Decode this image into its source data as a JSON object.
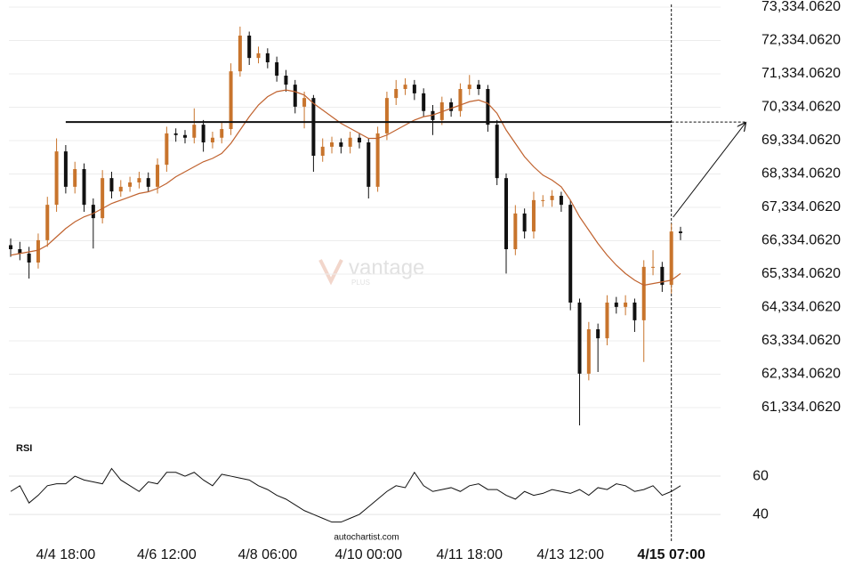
{
  "chart_data": [
    {
      "type": "candlestick",
      "categories": [
        null,
        null,
        null,
        null,
        null,
        null,
        "4/4 18:00",
        null,
        null,
        null,
        null,
        null,
        null,
        null,
        null,
        null,
        null,
        "4/6 12:00",
        null,
        null,
        null,
        null,
        null,
        null,
        null,
        null,
        null,
        null,
        "4/8 06:00",
        null,
        null,
        null,
        null,
        null,
        null,
        null,
        null,
        null,
        null,
        "4/10 00:00",
        null,
        null,
        null,
        null,
        null,
        null,
        null,
        null,
        null,
        null,
        "4/11 18:00",
        null,
        null,
        null,
        null,
        null,
        null,
        null,
        null,
        null,
        null,
        "4/13 12:00",
        null,
        null,
        null,
        null,
        null,
        null,
        null,
        null,
        null,
        null,
        "4/15 07:00",
        null
      ],
      "open": [
        66200,
        66080,
        65950,
        65680,
        66350,
        67410,
        69010,
        67950,
        68480,
        67410,
        67010,
        68210,
        67810,
        67950,
        68080,
        68210,
        67950,
        68610,
        69550,
        69500,
        69420,
        69810,
        69280,
        69420,
        69680,
        71410,
        72480,
        71810,
        71950,
        71680,
        71280,
        71010,
        70350,
        70610,
        68880,
        69150,
        69280,
        69150,
        69420,
        69280,
        67950,
        69550,
        70610,
        70880,
        71010,
        70750,
        70220,
        69950,
        70480,
        70220,
        70880,
        71010,
        70880,
        69810,
        68210,
        66080,
        67150,
        66610,
        67550,
        67550,
        67680,
        67410,
        64480,
        62350,
        63680,
        63410,
        64480,
        64350,
        64480,
        63950,
        65550,
        65550,
        65010,
        66610
      ],
      "high": [
        66400,
        66300,
        66150,
        66550,
        67650,
        69400,
        69200,
        68700,
        68650,
        67600,
        68450,
        68400,
        68150,
        68250,
        68400,
        68380,
        68800,
        69750,
        69700,
        69650,
        70300,
        69950,
        69600,
        69900,
        71650,
        72750,
        72600,
        72150,
        72100,
        71850,
        71450,
        71150,
        70800,
        70700,
        69400,
        69450,
        69400,
        69600,
        69550,
        69400,
        69750,
        70800,
        71150,
        71200,
        71150,
        70900,
        70400,
        70650,
        70600,
        71050,
        71300,
        71150,
        71000,
        69950,
        68350,
        67400,
        67300,
        67800,
        67700,
        67850,
        67800,
        67550,
        64600,
        63900,
        63850,
        64700,
        64650,
        64700,
        64600,
        65750,
        66050,
        65700,
        66850,
        66750
      ],
      "low": [
        65850,
        65750,
        65200,
        65500,
        66150,
        67200,
        67750,
        67750,
        67200,
        66100,
        66850,
        67600,
        67650,
        67800,
        67900,
        67800,
        67750,
        68400,
        69300,
        69250,
        69250,
        69000,
        69100,
        69250,
        69500,
        71250,
        71600,
        71650,
        71500,
        71100,
        70800,
        70150,
        69700,
        68400,
        68700,
        68950,
        68950,
        68950,
        69100,
        67600,
        67800,
        69350,
        70400,
        70700,
        70550,
        70050,
        69500,
        69800,
        70050,
        70050,
        70700,
        70700,
        69600,
        68000,
        65350,
        65900,
        66400,
        66400,
        67350,
        67350,
        67200,
        64250,
        60800,
        62150,
        62400,
        63200,
        64150,
        64100,
        63600,
        62700,
        65300,
        64800,
        64750,
        66350
      ],
      "close": [
        66080,
        65950,
        65680,
        66350,
        67410,
        69010,
        67950,
        68480,
        67410,
        67010,
        68210,
        67810,
        67950,
        68080,
        68210,
        67950,
        68610,
        69550,
        69500,
        69420,
        69810,
        69280,
        69420,
        69680,
        71410,
        72480,
        71810,
        71950,
        71680,
        71280,
        71010,
        70350,
        70610,
        68880,
        69150,
        69280,
        69150,
        69420,
        69280,
        67950,
        69550,
        70610,
        70880,
        71010,
        70750,
        70220,
        69950,
        70480,
        70220,
        70880,
        71010,
        70880,
        69810,
        68210,
        66080,
        67150,
        66610,
        67550,
        67550,
        67680,
        67410,
        64480,
        62350,
        63680,
        63410,
        64480,
        64350,
        64480,
        63950,
        65550,
        65550,
        65010,
        66610,
        66560
      ],
      "up_color": "#c8742c",
      "down_color": "#111111",
      "series": [
        {
          "color": "#c0622e",
          "values": [
            65900,
            65950,
            66000,
            66050,
            66200,
            66450,
            66700,
            66900,
            67050,
            67150,
            67300,
            67450,
            67550,
            67650,
            67750,
            67800,
            67900,
            68050,
            68250,
            68400,
            68550,
            68700,
            68800,
            68950,
            69250,
            69650,
            70050,
            70400,
            70650,
            70800,
            70850,
            70800,
            70700,
            70450,
            70250,
            70050,
            69850,
            69700,
            69550,
            69400,
            69400,
            69500,
            69650,
            69800,
            69950,
            70050,
            70100,
            70200,
            70300,
            70400,
            70500,
            70550,
            70450,
            70150,
            69650,
            69250,
            68850,
            68550,
            68300,
            68150,
            67950,
            67550,
            67050,
            66650,
            66250,
            65900,
            65600,
            65350,
            65150,
            65000,
            65050,
            65100,
            65150,
            65350
          ]
        }
      ],
      "level": 69890,
      "ylim": [
        60480,
        73547
      ],
      "yticks": [
        {
          "value": 73334.062,
          "label": "73,334.0620"
        },
        {
          "value": 72334.062,
          "label": "72,334.0620"
        },
        {
          "value": 71334.062,
          "label": "71,334.0620"
        },
        {
          "value": 70334.062,
          "label": "70,334.0620"
        },
        {
          "value": 69334.062,
          "label": "69,334.0620"
        },
        {
          "value": 68334.062,
          "label": "68,334.0620"
        },
        {
          "value": 67334.062,
          "label": "67,334.0620"
        },
        {
          "value": 66334.062,
          "label": "66,334.0620"
        },
        {
          "value": 65334.062,
          "label": "65,334.0620"
        },
        {
          "value": 64334.062,
          "label": "64,334.0620"
        },
        {
          "value": 63334.062,
          "label": "63,334.0620"
        },
        {
          "value": 62334.062,
          "label": "62,334.0620"
        },
        {
          "value": 61334.062,
          "label": "61,334.0620"
        }
      ],
      "grid": true,
      "watermark": "vantage",
      "watermark_sub": "PLUS"
    },
    {
      "type": "line",
      "title": "RSI",
      "series": [
        {
          "color": "#111111",
          "values": [
            52,
            55,
            46,
            50,
            55,
            56,
            56,
            60,
            58,
            57,
            56,
            64,
            58,
            55,
            52,
            57,
            56,
            62,
            62,
            60,
            62,
            58,
            55,
            61,
            60,
            59,
            58,
            55,
            53,
            50,
            48,
            45,
            42,
            40,
            38,
            36,
            36,
            38,
            40,
            44,
            48,
            52,
            55,
            54,
            62,
            55,
            52,
            53,
            54,
            52,
            55,
            56,
            53,
            53,
            50,
            48,
            52,
            50,
            51,
            53,
            52,
            51,
            53,
            50,
            54,
            53,
            56,
            55,
            52,
            53,
            55,
            50,
            52,
            55
          ]
        }
      ],
      "ylim": [
        29.8,
        76.3
      ],
      "yticks": [
        40,
        60
      ],
      "grid": true,
      "source": "autochartist.com"
    }
  ]
}
